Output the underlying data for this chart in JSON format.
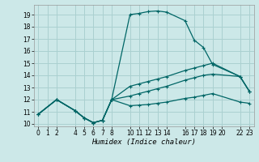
{
  "xlabel": "Humidex (Indice chaleur)",
  "bg_color": "#cce8e8",
  "grid_color": "#aad0d0",
  "line_color": "#006666",
  "xlim": [
    -0.5,
    23.5
  ],
  "ylim": [
    9.8,
    19.8
  ],
  "xticks": [
    0,
    1,
    2,
    4,
    5,
    6,
    7,
    8,
    10,
    11,
    12,
    13,
    14,
    16,
    17,
    18,
    19,
    20,
    22,
    23
  ],
  "yticks": [
    10,
    11,
    12,
    13,
    14,
    15,
    16,
    17,
    18,
    19
  ],
  "line1_x": [
    0,
    2,
    4,
    5,
    6,
    7,
    8,
    10,
    11,
    12,
    13,
    14,
    16,
    17,
    18,
    19,
    22,
    23
  ],
  "line1_y": [
    10.8,
    12.0,
    11.1,
    10.5,
    10.1,
    10.3,
    12.0,
    19.0,
    19.1,
    19.25,
    19.3,
    19.2,
    18.5,
    16.9,
    16.3,
    14.9,
    13.9,
    12.7
  ],
  "line2_x": [
    0,
    2,
    4,
    5,
    6,
    7,
    8,
    10,
    11,
    12,
    13,
    14,
    16,
    17,
    18,
    19,
    22,
    23
  ],
  "line2_y": [
    10.8,
    12.0,
    11.1,
    10.5,
    10.1,
    10.3,
    12.0,
    11.5,
    11.55,
    11.6,
    11.7,
    11.8,
    12.1,
    12.2,
    12.35,
    12.5,
    11.8,
    11.7
  ],
  "line3_x": [
    0,
    2,
    4,
    5,
    6,
    7,
    8,
    10,
    11,
    12,
    13,
    14,
    16,
    17,
    18,
    19,
    22,
    23
  ],
  "line3_y": [
    10.8,
    12.0,
    11.1,
    10.5,
    10.1,
    10.3,
    12.0,
    12.3,
    12.5,
    12.7,
    12.9,
    13.1,
    13.6,
    13.8,
    14.0,
    14.1,
    13.9,
    12.7
  ],
  "line4_x": [
    0,
    2,
    4,
    5,
    6,
    7,
    8,
    10,
    11,
    12,
    13,
    14,
    16,
    17,
    18,
    19,
    22,
    23
  ],
  "line4_y": [
    10.8,
    12.0,
    11.1,
    10.5,
    10.1,
    10.3,
    12.0,
    13.1,
    13.3,
    13.5,
    13.7,
    13.9,
    14.4,
    14.6,
    14.8,
    15.0,
    13.9,
    12.7
  ]
}
